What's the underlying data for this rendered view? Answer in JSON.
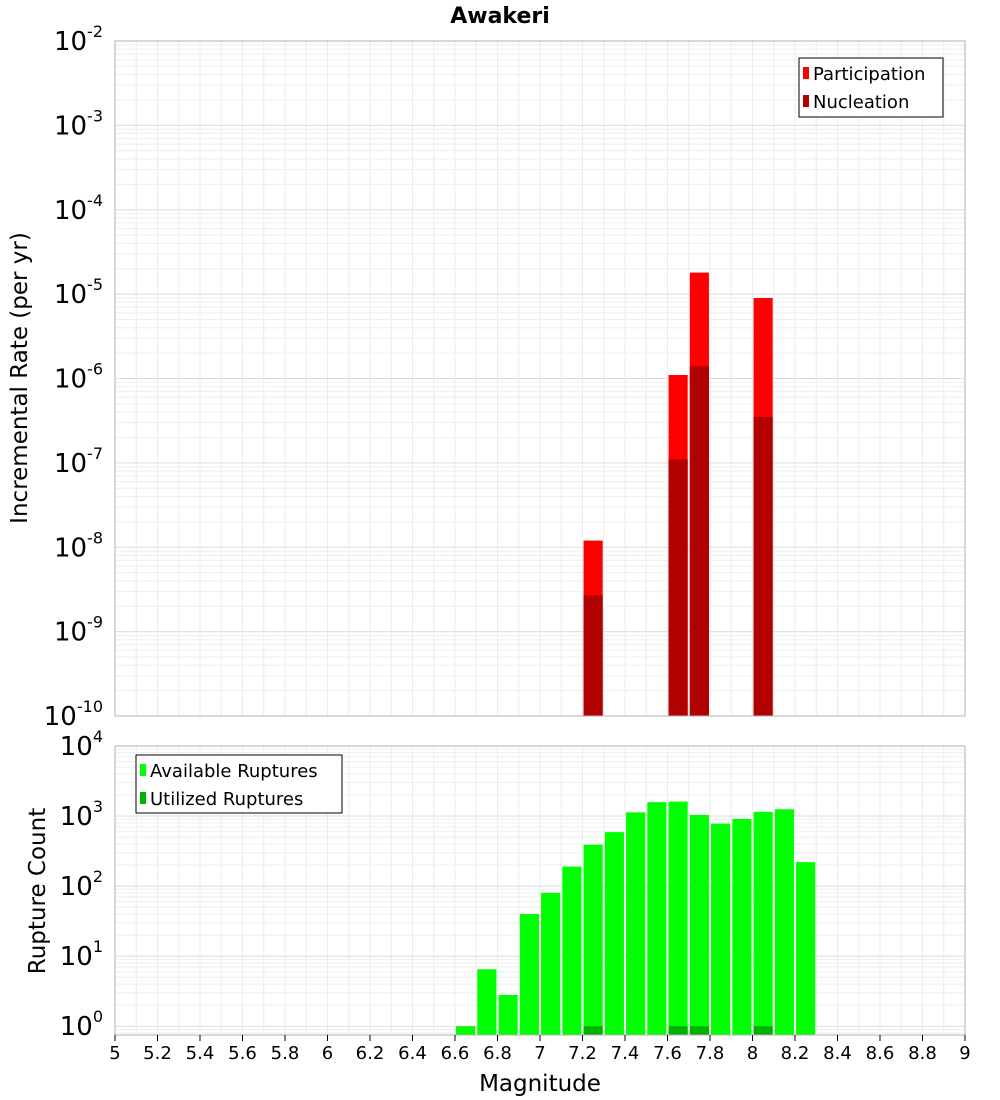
{
  "chart_data": [
    {
      "type": "bar",
      "title": "Awakeri",
      "ylabel": "Incremental Rate (per yr)",
      "yscale": "log",
      "ylim": [
        1e-10,
        0.01
      ],
      "xlim": [
        5,
        9
      ],
      "grid": true,
      "legend_position": "top-right",
      "ytick_labels": [
        {
          "base": "10",
          "exp": "-10"
        },
        {
          "base": "10",
          "exp": "-9"
        },
        {
          "base": "10",
          "exp": "-8"
        },
        {
          "base": "10",
          "exp": "-7"
        },
        {
          "base": "10",
          "exp": "-6"
        },
        {
          "base": "10",
          "exp": "-5"
        },
        {
          "base": "10",
          "exp": "-4"
        },
        {
          "base": "10",
          "exp": "-3"
        },
        {
          "base": "10",
          "exp": "-2"
        }
      ],
      "series": [
        {
          "name": "Participation",
          "color": "#ff0000",
          "points": [
            {
              "x": 7.25,
              "y": 1.2e-08
            },
            {
              "x": 7.65,
              "y": 1.1e-06
            },
            {
              "x": 7.75,
              "y": 1.8e-05
            },
            {
              "x": 8.05,
              "y": 9e-06
            }
          ]
        },
        {
          "name": "Nucleation",
          "color": "#b10000",
          "points": [
            {
              "x": 7.25,
              "y": 2.7e-09
            },
            {
              "x": 7.65,
              "y": 1.1e-07
            },
            {
              "x": 7.75,
              "y": 1.4e-06
            },
            {
              "x": 8.05,
              "y": 3.5e-07
            }
          ]
        }
      ]
    },
    {
      "type": "bar",
      "xlabel": "Magnitude",
      "ylabel": "Rupture Count",
      "yscale": "log",
      "ylim": [
        0.75,
        10000
      ],
      "xlim": [
        5,
        9
      ],
      "grid": true,
      "legend_position": "top-left",
      "ytick_labels": [
        {
          "base": "10",
          "exp": "0"
        },
        {
          "base": "10",
          "exp": "1"
        },
        {
          "base": "10",
          "exp": "2"
        },
        {
          "base": "10",
          "exp": "3"
        },
        {
          "base": "10",
          "exp": "4"
        }
      ],
      "xtick_labels": [
        "5",
        "5.2",
        "5.4",
        "5.6",
        "5.8",
        "6",
        "6.2",
        "6.4",
        "6.6",
        "6.8",
        "7",
        "7.2",
        "7.4",
        "7.6",
        "7.8",
        "8",
        "8.2",
        "8.4",
        "8.6",
        "8.8",
        "9"
      ],
      "series": [
        {
          "name": "Available Ruptures",
          "color": "#00ff00",
          "points": [
            {
              "x": 6.65,
              "y": 1
            },
            {
              "x": 6.75,
              "y": 6.5
            },
            {
              "x": 6.85,
              "y": 2.8
            },
            {
              "x": 6.95,
              "y": 40
            },
            {
              "x": 7.05,
              "y": 80
            },
            {
              "x": 7.15,
              "y": 190
            },
            {
              "x": 7.25,
              "y": 390
            },
            {
              "x": 7.35,
              "y": 590
            },
            {
              "x": 7.45,
              "y": 1130
            },
            {
              "x": 7.55,
              "y": 1580
            },
            {
              "x": 7.65,
              "y": 1610
            },
            {
              "x": 7.75,
              "y": 1040
            },
            {
              "x": 7.85,
              "y": 780
            },
            {
              "x": 7.95,
              "y": 910
            },
            {
              "x": 8.05,
              "y": 1150
            },
            {
              "x": 8.15,
              "y": 1250
            },
            {
              "x": 8.25,
              "y": 220
            }
          ]
        },
        {
          "name": "Utilized Ruptures",
          "color": "#00b000",
          "points": [
            {
              "x": 7.25,
              "y": 1
            },
            {
              "x": 7.65,
              "y": 1
            },
            {
              "x": 7.75,
              "y": 1
            },
            {
              "x": 8.05,
              "y": 1
            }
          ]
        }
      ]
    }
  ]
}
